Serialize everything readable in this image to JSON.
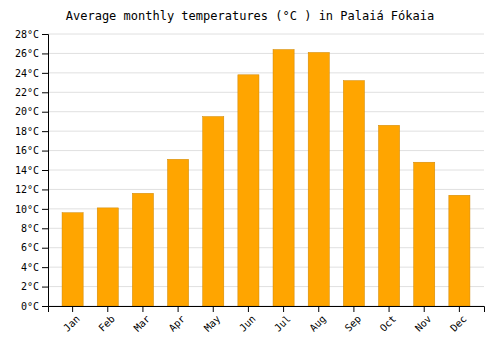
{
  "chart_data": {
    "type": "bar",
    "title": "Average monthly temperatures (°C ) in Palaiá Fókaia",
    "categories": [
      "Jan",
      "Feb",
      "Mar",
      "Apr",
      "May",
      "Jun",
      "Jul",
      "Aug",
      "Sep",
      "Oct",
      "Nov",
      "Dec"
    ],
    "values": [
      9.6,
      10.1,
      11.6,
      15.1,
      19.5,
      23.8,
      26.4,
      26.1,
      23.2,
      18.6,
      14.8,
      11.4
    ],
    "color": "#FFA500",
    "ylim": [
      0,
      28
    ],
    "yticks": [
      {
        "value": 0,
        "label": "0°C"
      },
      {
        "value": 2,
        "label": "2°C"
      },
      {
        "value": 4,
        "label": "4°C"
      },
      {
        "value": 6,
        "label": "6°C"
      },
      {
        "value": 8,
        "label": "8°C"
      },
      {
        "value": 10,
        "label": "10°C"
      },
      {
        "value": 12,
        "label": "12°C"
      },
      {
        "value": 14,
        "label": "14°C"
      },
      {
        "value": 16,
        "label": "16°C"
      },
      {
        "value": 18,
        "label": "18°C"
      },
      {
        "value": 20,
        "label": "20°C"
      },
      {
        "value": 22,
        "label": "22°C"
      },
      {
        "value": 24,
        "label": "24°C"
      },
      {
        "value": 26,
        "label": "26°C"
      },
      {
        "value": 28,
        "label": "28°C"
      }
    ],
    "grid": true
  }
}
